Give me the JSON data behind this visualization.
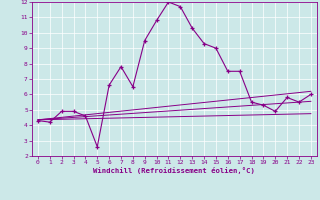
{
  "xlabel": "Windchill (Refroidissement éolien,°C)",
  "background_color": "#cce8e8",
  "line_color": "#880088",
  "xlim": [
    -0.5,
    23.5
  ],
  "ylim": [
    2,
    12
  ],
  "xticks": [
    0,
    1,
    2,
    3,
    4,
    5,
    6,
    7,
    8,
    9,
    10,
    11,
    12,
    13,
    14,
    15,
    16,
    17,
    18,
    19,
    20,
    21,
    22,
    23
  ],
  "yticks": [
    2,
    3,
    4,
    5,
    6,
    7,
    8,
    9,
    10,
    11,
    12
  ],
  "main_x": [
    0,
    1,
    2,
    3,
    4,
    5,
    6,
    7,
    8,
    9,
    10,
    11,
    12,
    13,
    14,
    15,
    16,
    17,
    18,
    19,
    20,
    21,
    22,
    23
  ],
  "main_y": [
    4.3,
    4.2,
    4.9,
    4.9,
    4.6,
    2.6,
    6.6,
    7.8,
    6.5,
    9.5,
    10.8,
    12.0,
    11.7,
    10.3,
    9.3,
    9.0,
    7.5,
    7.5,
    5.5,
    5.3,
    4.9,
    5.8,
    5.5,
    6.0
  ],
  "reg_lines": [
    {
      "x": [
        0,
        23
      ],
      "y": [
        4.35,
        4.75
      ]
    },
    {
      "x": [
        0,
        23
      ],
      "y": [
        4.35,
        5.55
      ]
    },
    {
      "x": [
        0,
        23
      ],
      "y": [
        4.35,
        6.2
      ]
    }
  ],
  "grid_color": "#aadddd",
  "tick_color": "#880088",
  "spine_color": "#880088"
}
